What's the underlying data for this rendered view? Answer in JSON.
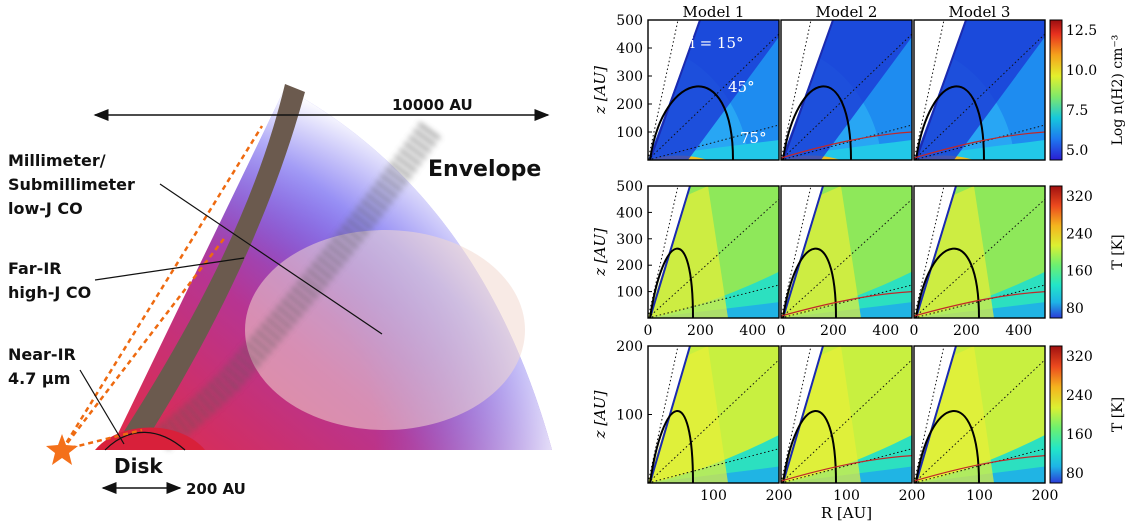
{
  "schematic": {
    "labels": {
      "scale_large": "10000 AU",
      "scale_small": "200 AU",
      "envelope": "Envelope",
      "disk": "Disk",
      "mm_line1": "Millimeter/",
      "mm_line2": "Submillimeter",
      "mm_line3": "low-J CO",
      "fir_line1": "Far-IR",
      "fir_line2": "high-J CO",
      "nir_line1": "Near-IR",
      "nir_line2": "4.7 μm"
    },
    "colors": {
      "envelope_blue": "#6f6cf0",
      "disk_red": "#d8203a",
      "outflow_wall": "#6b5a4e",
      "ray_orange": "#ee6a10",
      "star": "#f4701a"
    }
  },
  "panels": {
    "model_titles": [
      "Model 1",
      "Model 2",
      "Model 3"
    ],
    "angle_labels": [
      "i = 15°",
      "45°",
      "75°"
    ],
    "rows": [
      {
        "ylabel": "z [AU]",
        "ylim": [
          0,
          500
        ],
        "yticks": [
          "500",
          "400",
          "300",
          "200",
          "100"
        ],
        "xlim": [
          0,
          500
        ],
        "colorbar": {
          "label": "Log n(H2) cm⁻³",
          "ticks": [
            "12.5",
            "10.0",
            "7.5",
            "5.0"
          ],
          "colors": [
            "#2a1ed2",
            "#1e78f0",
            "#16c8dc",
            "#7ee86c",
            "#e4f02c",
            "#f5a21c",
            "#e8301e",
            "#9a0e10"
          ]
        }
      },
      {
        "ylabel": "z [AU]",
        "ylim": [
          0,
          500
        ],
        "yticks": [
          "500",
          "400",
          "300",
          "200",
          "100"
        ],
        "xlim": [
          0,
          500
        ],
        "xticks": [
          "0",
          "200",
          "400",
          "0",
          "200",
          "400",
          "0",
          "200",
          "400"
        ],
        "colorbar": {
          "label": "T [K]",
          "ticks": [
            "320",
            "240",
            "160",
            "80"
          ],
          "colors": [
            "#2a3cd8",
            "#1eb4e6",
            "#22e6c8",
            "#6cf070",
            "#dcf032",
            "#f5b41e",
            "#ec4a1e",
            "#a01010"
          ]
        }
      },
      {
        "ylabel": "z [AU]",
        "ylim": [
          0,
          200
        ],
        "yticks": [
          "200",
          "100"
        ],
        "xlim": [
          0,
          200
        ],
        "xticks": [
          "100",
          "200",
          "100",
          "200",
          "100",
          "200"
        ],
        "xlabel": "R [AU]",
        "colorbar": {
          "label": "T [K]",
          "ticks": [
            "320",
            "240",
            "160",
            "80"
          ],
          "colors": [
            "#2a3cd8",
            "#1eb4e6",
            "#22e6c8",
            "#6cf070",
            "#dcf032",
            "#f5b41e",
            "#ec4a1e",
            "#a01010"
          ]
        }
      }
    ]
  }
}
